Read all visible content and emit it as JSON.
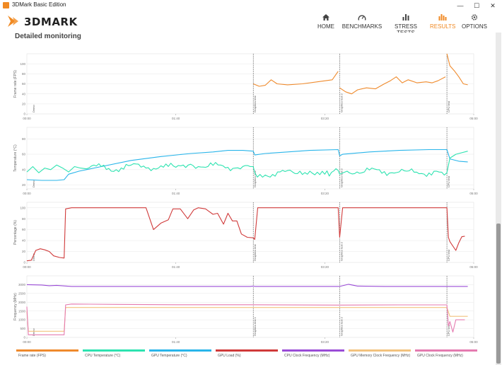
{
  "window": {
    "title": "3DMark Basic Edition",
    "minimize": "—",
    "maximize": "☐",
    "close": "✕"
  },
  "brand": {
    "logo_text": "3DMARK"
  },
  "nav": [
    {
      "label": "HOME",
      "icon": "home-icon",
      "active": false
    },
    {
      "label": "BENCHMARKS",
      "icon": "gauge-icon",
      "active": false
    },
    {
      "label": "STRESS TESTS",
      "icon": "bar-chart-icon",
      "active": false
    },
    {
      "label": "RESULTS",
      "icon": "results-icon",
      "active": true
    },
    {
      "label": "OPTIONS",
      "icon": "gear-icon",
      "active": false
    }
  ],
  "page": {
    "section_title": "Detailed monitoring"
  },
  "colors": {
    "accent": "#f08a24",
    "frame_rate": "#ef8a2c",
    "cpu_temp": "#2de3b0",
    "gpu_temp": "#29b5ea",
    "gpu_load": "#d03a3a",
    "cpu_clock": "#9a4cd6",
    "gpu_mem_clock": "#f2c27e",
    "gpu_clock": "#e57bb0"
  },
  "chart_data": [
    {
      "type": "line",
      "ylabel": "Frame rate (FPS)",
      "x_ticks": [
        "00:00",
        "01:40",
        "03:20",
        "05:00"
      ],
      "y_ticks": [
        0,
        20,
        40,
        60,
        80,
        100
      ],
      "ylim": [
        0,
        120
      ],
      "xlim": [
        0,
        300
      ],
      "markers": [
        {
          "t": 0,
          "label": "Demo"
        },
        {
          "t": 152,
          "label": "Graphics test"
        },
        {
          "t": 210,
          "label": "Graphics test 2"
        },
        {
          "t": 282,
          "label": "CPU test"
        }
      ],
      "series": [
        {
          "name": "Frame rate (FPS)",
          "color": "#ef8a2c",
          "segments": [
            [
              [
                152,
                60
              ],
              [
                156,
                55
              ],
              [
                160,
                57
              ],
              [
                164,
                68
              ],
              [
                168,
                60
              ],
              [
                175,
                58
              ],
              [
                185,
                60
              ],
              [
                195,
                64
              ],
              [
                205,
                68
              ],
              [
                209,
                85
              ]
            ],
            [
              [
                210,
                52
              ],
              [
                214,
                44
              ],
              [
                218,
                40
              ],
              [
                222,
                48
              ],
              [
                228,
                52
              ],
              [
                234,
                50
              ],
              [
                240,
                60
              ],
              [
                244,
                66
              ],
              [
                248,
                74
              ],
              [
                252,
                62
              ],
              [
                256,
                68
              ],
              [
                262,
                62
              ],
              [
                268,
                64
              ],
              [
                272,
                62
              ],
              [
                276,
                66
              ],
              [
                281,
                74
              ]
            ],
            [
              [
                282,
                120
              ],
              [
                284,
                96
              ],
              [
                287,
                86
              ],
              [
                290,
                74
              ],
              [
                293,
                60
              ],
              [
                296,
                58
              ]
            ]
          ]
        }
      ]
    },
    {
      "type": "line",
      "ylabel": "Temperature (°C)",
      "x_ticks": [
        "00:00",
        "01:40",
        "03:20",
        "05:00"
      ],
      "y_ticks": [
        20,
        40,
        60,
        80
      ],
      "ylim": [
        15,
        95
      ],
      "xlim": [
        0,
        300
      ],
      "markers": [
        {
          "t": 0,
          "label": "Demo"
        },
        {
          "t": 152,
          "label": "Graphics test"
        },
        {
          "t": 210,
          "label": "Graphics test 2"
        },
        {
          "t": 282,
          "label": "CPU test"
        }
      ],
      "series": [
        {
          "name": "GPU Temperature (°C)",
          "color": "#29b5ea",
          "points": [
            [
              0,
              27
            ],
            [
              10,
              26
            ],
            [
              20,
              26
            ],
            [
              25,
              27
            ],
            [
              28,
              34
            ],
            [
              35,
              38
            ],
            [
              50,
              44
            ],
            [
              70,
              52
            ],
            [
              90,
              57
            ],
            [
              110,
              61
            ],
            [
              125,
              63
            ],
            [
              135,
              65
            ],
            [
              145,
              65
            ],
            [
              152,
              64
            ],
            [
              153,
              59
            ],
            [
              160,
              61
            ],
            [
              175,
              63
            ],
            [
              190,
              65
            ],
            [
              209,
              66
            ],
            [
              210,
              58
            ],
            [
              212,
              60
            ],
            [
              230,
              63
            ],
            [
              250,
              65
            ],
            [
              270,
              66
            ],
            [
              282,
              66
            ],
            [
              284,
              54
            ],
            [
              290,
              51
            ],
            [
              296,
              50
            ]
          ]
        },
        {
          "name": "CPU Temperature (°C)",
          "color": "#2de3b0",
          "points": [
            [
              0,
              37
            ],
            [
              4,
              44
            ],
            [
              8,
              36
            ],
            [
              12,
              42
            ],
            [
              16,
              40
            ],
            [
              20,
              46
            ],
            [
              24,
              42
            ],
            [
              28,
              37
            ],
            [
              32,
              44
            ],
            [
              36,
              42
            ],
            [
              40,
              41
            ],
            [
              50,
              44
            ],
            [
              60,
              40
            ],
            [
              70,
              46
            ],
            [
              80,
              42
            ],
            [
              90,
              45
            ],
            [
              100,
              43
            ],
            [
              110,
              47
            ],
            [
              120,
              43
            ],
            [
              130,
              46
            ],
            [
              140,
              42
            ],
            [
              150,
              44
            ],
            [
              152,
              44
            ],
            [
              153,
              36
            ],
            [
              160,
              33
            ],
            [
              170,
              37
            ],
            [
              180,
              35
            ],
            [
              190,
              38
            ],
            [
              200,
              34
            ],
            [
              209,
              39
            ],
            [
              210,
              34
            ],
            [
              215,
              38
            ],
            [
              225,
              36
            ],
            [
              235,
              40
            ],
            [
              245,
              36
            ],
            [
              255,
              38
            ],
            [
              265,
              35
            ],
            [
              275,
              38
            ],
            [
              282,
              36
            ],
            [
              284,
              55
            ],
            [
              288,
              60
            ],
            [
              292,
              62
            ],
            [
              296,
              64
            ]
          ]
        }
      ]
    },
    {
      "type": "line",
      "ylabel": "Percentage (%)",
      "x_ticks": [
        "00:00",
        "01:40",
        "03:20",
        "05:00"
      ],
      "y_ticks": [
        0,
        20,
        40,
        60,
        80,
        100
      ],
      "ylim": [
        0,
        110
      ],
      "xlim": [
        0,
        300
      ],
      "markers": [
        {
          "t": 0,
          "label": "Demo"
        },
        {
          "t": 152,
          "label": "Graphics test"
        },
        {
          "t": 210,
          "label": "Graphics test 2"
        },
        {
          "t": 282,
          "label": "CPU test"
        }
      ],
      "series": [
        {
          "name": "GPU Load (%)",
          "color": "#d03a3a",
          "points": [
            [
              0,
              3
            ],
            [
              3,
              4
            ],
            [
              6,
              22
            ],
            [
              9,
              25
            ],
            [
              12,
              23
            ],
            [
              15,
              20
            ],
            [
              18,
              12
            ],
            [
              22,
              9
            ],
            [
              25,
              8
            ],
            [
              26,
              98
            ],
            [
              30,
              100
            ],
            [
              70,
              100
            ],
            [
              80,
              100
            ],
            [
              85,
              60
            ],
            [
              90,
              72
            ],
            [
              95,
              78
            ],
            [
              98,
              98
            ],
            [
              103,
              98
            ],
            [
              108,
              80
            ],
            [
              112,
              96
            ],
            [
              115,
              100
            ],
            [
              120,
              98
            ],
            [
              122,
              94
            ],
            [
              125,
              88
            ],
            [
              128,
              90
            ],
            [
              132,
              70
            ],
            [
              135,
              90
            ],
            [
              138,
              76
            ],
            [
              141,
              76
            ],
            [
              144,
              52
            ],
            [
              148,
              46
            ],
            [
              152,
              45
            ],
            [
              153,
              42
            ],
            [
              155,
              100
            ],
            [
              180,
              100
            ],
            [
              200,
              100
            ],
            [
              209,
              100
            ],
            [
              210,
              46
            ],
            [
              212,
              100
            ],
            [
              245,
              100
            ],
            [
              265,
              100
            ],
            [
              282,
              100
            ],
            [
              283,
              46
            ],
            [
              284,
              38
            ],
            [
              286,
              30
            ],
            [
              288,
              22
            ],
            [
              290,
              36
            ],
            [
              292,
              47
            ],
            [
              294,
              48
            ]
          ]
        }
      ]
    },
    {
      "type": "line",
      "ylabel": "Frequency (MHz)",
      "x_ticks": [
        "00:00",
        "01:40",
        "03:20",
        "05:00"
      ],
      "y_ticks": [
        0,
        500,
        1000,
        1500,
        2000,
        2500,
        3000
      ],
      "ylim": [
        0,
        3500
      ],
      "xlim": [
        0,
        300
      ],
      "markers": [
        {
          "t": 0,
          "label": "Demo"
        },
        {
          "t": 152,
          "label": "Graphics test 1"
        },
        {
          "t": 210,
          "label": "Graphics test 2"
        },
        {
          "t": 282,
          "label": "CPU test"
        }
      ],
      "series": [
        {
          "name": "CPU Clock Frequency (MHz)",
          "color": "#9a4cd6",
          "points": [
            [
              0,
              3000
            ],
            [
              10,
              2980
            ],
            [
              15,
              2940
            ],
            [
              20,
              2960
            ],
            [
              30,
              2900
            ],
            [
              60,
              2900
            ],
            [
              100,
              2900
            ],
            [
              150,
              2900
            ],
            [
              152,
              2920
            ],
            [
              153,
              2900
            ],
            [
              210,
              2900
            ],
            [
              212,
              2940
            ],
            [
              216,
              3020
            ],
            [
              222,
              2920
            ],
            [
              240,
              2900
            ],
            [
              282,
              2900
            ],
            [
              296,
              2900
            ]
          ]
        },
        {
          "name": "GPU Memory Clock Frequency (MHz)",
          "color": "#f2c27e",
          "points": [
            [
              0,
              1500
            ],
            [
              1,
              350
            ],
            [
              2,
              350
            ],
            [
              25,
              350
            ],
            [
              26,
              1700
            ],
            [
              100,
              1700
            ],
            [
              200,
              1700
            ],
            [
              282,
              1700
            ],
            [
              284,
              1200
            ],
            [
              296,
              1200
            ]
          ]
        },
        {
          "name": "GPU Clock Frequency (MHz)",
          "color": "#e57bb0",
          "points": [
            [
              0,
              1750
            ],
            [
              1,
              150
            ],
            [
              5,
              150
            ],
            [
              8,
              150
            ],
            [
              25,
              150
            ],
            [
              26,
              1850
            ],
            [
              30,
              1900
            ],
            [
              60,
              1880
            ],
            [
              100,
              1860
            ],
            [
              150,
              1860
            ],
            [
              210,
              1840
            ],
            [
              250,
              1850
            ],
            [
              282,
              1850
            ],
            [
              283,
              650
            ],
            [
              284,
              900
            ],
            [
              286,
              300
            ],
            [
              288,
              1000
            ],
            [
              294,
              1000
            ]
          ]
        }
      ]
    }
  ],
  "legend": [
    {
      "label": "Frame rate (FPS)",
      "color": "#ef8a2c"
    },
    {
      "label": "CPU Temperature (°C)",
      "color": "#2de3b0"
    },
    {
      "label": "GPU Temperature (°C)",
      "color": "#29b5ea"
    },
    {
      "label": "GPU Load (%)",
      "color": "#d03a3a"
    },
    {
      "label": "CPU Clock Frequency (MHz)",
      "color": "#9a4cd6"
    },
    {
      "label": "GPU Memory Clock Frequency (MHz)",
      "color": "#f2c27e"
    },
    {
      "label": "GPU Clock Frequency (MHz)",
      "color": "#e57bb0"
    }
  ]
}
